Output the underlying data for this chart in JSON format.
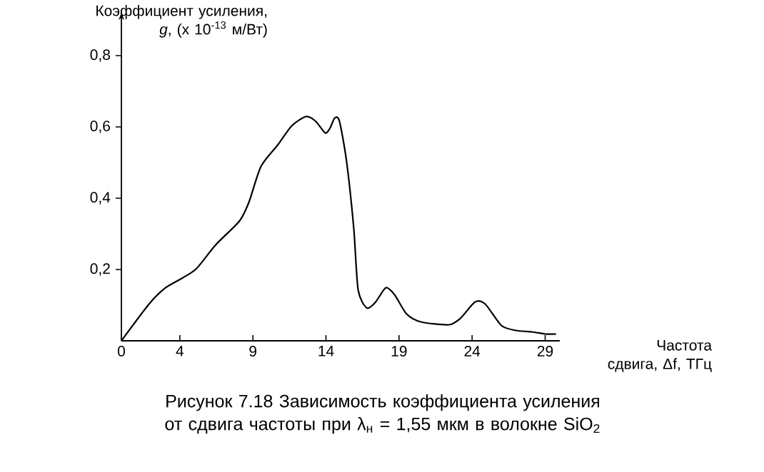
{
  "chart_data": {
    "type": "line",
    "title": "Рисунок 7.18 Зависимость коэффициента усиления от сдвига частоты при λ$_{н}$ = 1,55 мкм в волокне SiO$_{2}$",
    "xlabel": "Частота сдвига, Δf, ТГц",
    "ylabel": "Коэффициент усиления, *g*, (x 10$^{-13}$ м/Вт)",
    "color": "#000000",
    "x": [
      0,
      1.89,
      3.03,
      4.17,
      5.15,
      6.45,
      8.08,
      8.73,
      9.55,
      10.69,
      11.66,
      12.64,
      13.29,
      13.95,
      14.27,
      14.6,
      14.92,
      15.41,
      15.9,
      16.2,
      16.8,
      17.4,
      18.1,
      18.7,
      19.5,
      20.5,
      22.4,
      23.2,
      24.2,
      24.9,
      26.0,
      27.0,
      28.1,
      29.0,
      29.75
    ],
    "values": [
      0,
      0.103,
      0.149,
      0.176,
      0.203,
      0.269,
      0.336,
      0.389,
      0.489,
      0.549,
      0.603,
      0.629,
      0.616,
      0.583,
      0.596,
      0.625,
      0.616,
      0.503,
      0.316,
      0.143,
      0.092,
      0.109,
      0.149,
      0.129,
      0.076,
      0.053,
      0.045,
      0.063,
      0.109,
      0.103,
      0.043,
      0.029,
      0.025,
      0.019,
      0.019
    ],
    "xlim": [
      0,
      30
    ],
    "ylim": [
      0,
      0.9
    ],
    "xticks": [
      0,
      4,
      9,
      14,
      19,
      24,
      29
    ],
    "yticks": [
      {
        "value": 0.2,
        "label": "0,2"
      },
      {
        "value": 0.4,
        "label": "0,4"
      },
      {
        "value": 0.6,
        "label": "0,6"
      },
      {
        "value": 0.8,
        "label": "0,8"
      }
    ]
  }
}
